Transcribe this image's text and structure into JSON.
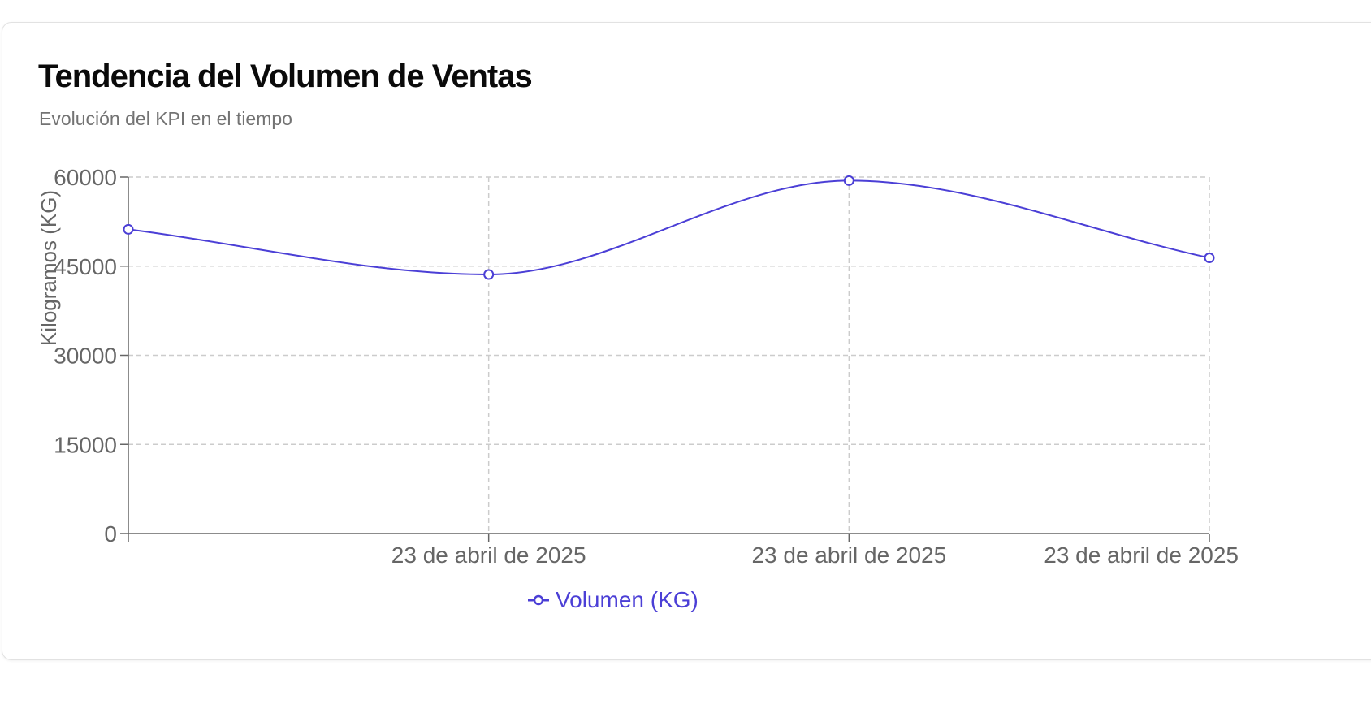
{
  "card": {
    "title": "Tendencia del Volumen de Ventas",
    "subtitle": "Evolución del KPI en el tiempo"
  },
  "chart_data": {
    "type": "line",
    "x": [
      "",
      "23 de abril de 2025",
      "23 de abril de 2025",
      "23 de abril de 2025"
    ],
    "series": [
      {
        "name": "Volumen (KG)",
        "values": [
          51200,
          43600,
          59400,
          46400
        ],
        "color": "#4b3fd6"
      }
    ],
    "xlabel": "",
    "ylabel": "Kilogramos (KG)",
    "ylim": [
      0,
      60000
    ],
    "yticks": [
      0,
      15000,
      30000,
      45000,
      60000
    ],
    "grid": true,
    "grid_style": "dashed",
    "curve": "smooth",
    "legend_position": "bottom"
  }
}
